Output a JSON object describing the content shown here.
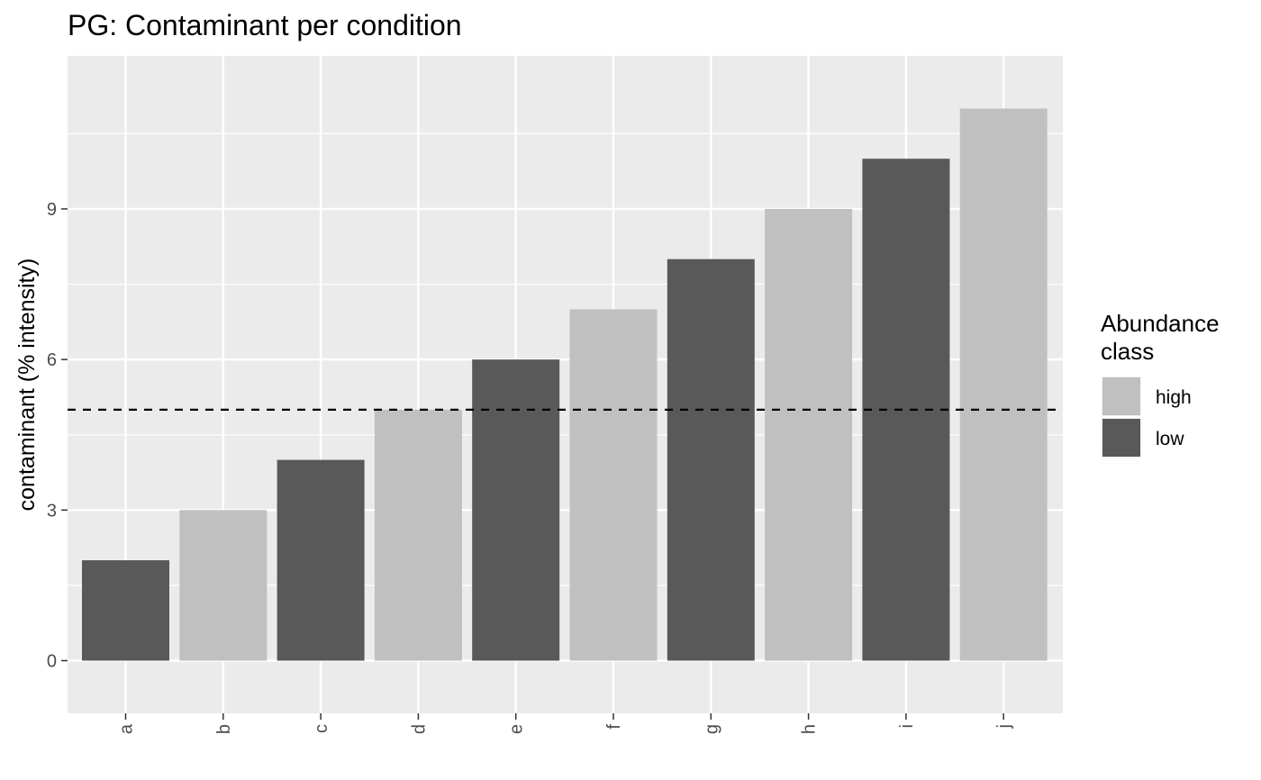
{
  "chart_data": {
    "type": "bar",
    "title": "PG: Contaminant per condition",
    "xlabel": "",
    "ylabel": "contaminant (% intensity)",
    "categories": [
      "a",
      "b",
      "c",
      "d",
      "e",
      "f",
      "g",
      "h",
      "i",
      "j"
    ],
    "values": [
      2,
      3,
      4,
      5,
      6,
      7,
      8,
      9,
      10,
      11
    ],
    "classes": [
      "low",
      "high",
      "low",
      "high",
      "low",
      "high",
      "low",
      "high",
      "low",
      "high"
    ],
    "ylim": [
      -1.05,
      12.05
    ],
    "yticks": [
      0,
      3,
      6,
      9
    ],
    "reference_line": {
      "y": 5,
      "style": "dashed",
      "color": "#000000"
    },
    "grid": true,
    "legend": {
      "title": "Abundance class",
      "title_lines": [
        "Abundance",
        "class"
      ],
      "placement": "right",
      "entries": [
        {
          "label": "high",
          "color": "#c0c0c0"
        },
        {
          "label": "low",
          "color": "#595959"
        }
      ]
    },
    "colors": {
      "panel": "#ebebeb",
      "grid": "#ffffff",
      "high": "#c0c0c0",
      "low": "#595959",
      "tick_text": "#4d4d4d"
    }
  }
}
